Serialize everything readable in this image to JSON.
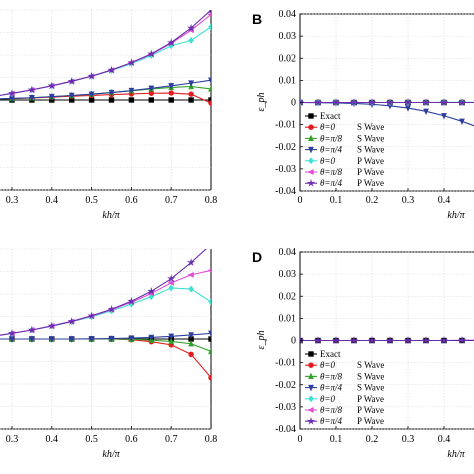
{
  "chart_data": [
    {
      "panel": "",
      "type": "line",
      "xlabel": "kh/π",
      "ylabel": "",
      "xlim": [
        0.25,
        0.8
      ],
      "ylim": [
        -0.04,
        0.04
      ],
      "x_ticks": [
        "0.3",
        "0.4",
        "0.5",
        "0.6",
        "0.7",
        "0.8"
      ],
      "y_ticks": [],
      "series": [
        {
          "color": "#000000",
          "marker": "square",
          "x": [
            0.25,
            0.3,
            0.35,
            0.4,
            0.45,
            0.5,
            0.55,
            0.6,
            0.65,
            0.7,
            0.75,
            0.8
          ],
          "y": [
            0,
            0,
            0,
            0,
            0,
            0,
            0,
            0,
            0,
            0,
            0,
            0
          ]
        },
        {
          "color": "#e41a1c",
          "marker": "circle",
          "x": [
            0.25,
            0.3,
            0.35,
            0.4,
            0.45,
            0.5,
            0.55,
            0.6,
            0.65,
            0.7,
            0.75,
            0.8
          ],
          "y": [
            0.0003,
            0.0006,
            0.0009,
            0.0013,
            0.0017,
            0.002,
            0.0024,
            0.0027,
            0.003,
            0.0031,
            0.0026,
            -0.0014
          ]
        },
        {
          "color": "#33a02c",
          "marker": "triangle-up",
          "x": [
            0.25,
            0.3,
            0.35,
            0.4,
            0.45,
            0.5,
            0.55,
            0.6,
            0.65,
            0.7,
            0.75,
            0.8
          ],
          "y": [
            0.0003,
            0.0007,
            0.001,
            0.0015,
            0.002,
            0.0026,
            0.0033,
            0.0041,
            0.0049,
            0.0056,
            0.006,
            0.0049
          ]
        },
        {
          "color": "#2c3e9e",
          "marker": "triangle-down",
          "x": [
            0.25,
            0.3,
            0.35,
            0.4,
            0.45,
            0.5,
            0.55,
            0.6,
            0.65,
            0.7,
            0.75,
            0.8
          ],
          "y": [
            0.0003,
            0.0007,
            0.001,
            0.0015,
            0.002,
            0.0026,
            0.0033,
            0.0042,
            0.0052,
            0.0063,
            0.0075,
            0.0088
          ]
        },
        {
          "color": "#40e0d0",
          "marker": "diamond",
          "x": [
            0.25,
            0.3,
            0.35,
            0.4,
            0.45,
            0.5,
            0.55,
            0.6,
            0.65,
            0.7,
            0.75,
            0.8
          ],
          "y": [
            0.0015,
            0.0029,
            0.0045,
            0.0063,
            0.0083,
            0.0105,
            0.0131,
            0.0162,
            0.0198,
            0.0241,
            0.0265,
            0.0325
          ]
        },
        {
          "color": "#e24fd8",
          "marker": "triangle-left",
          "x": [
            0.25,
            0.3,
            0.35,
            0.4,
            0.45,
            0.5,
            0.55,
            0.6,
            0.65,
            0.7,
            0.75,
            0.8
          ],
          "y": [
            0.0015,
            0.0029,
            0.0045,
            0.0063,
            0.0083,
            0.0106,
            0.0133,
            0.0166,
            0.0203,
            0.0252,
            0.031,
            0.038
          ]
        },
        {
          "color": "#6a2db0",
          "marker": "star",
          "x": [
            0.25,
            0.3,
            0.35,
            0.4,
            0.45,
            0.5,
            0.55,
            0.6,
            0.65,
            0.7,
            0.75,
            0.8
          ],
          "y": [
            0.0015,
            0.0029,
            0.0045,
            0.0063,
            0.0083,
            0.0106,
            0.0133,
            0.0166,
            0.0205,
            0.0255,
            0.032,
            0.04
          ]
        }
      ]
    },
    {
      "panel": "B",
      "type": "line",
      "xlabel": "kh/π",
      "ylabel": "ε_ph",
      "xlim": [
        0,
        0.5
      ],
      "ylim": [
        -0.04,
        0.04
      ],
      "x_ticks": [
        "0",
        "0.1",
        "0.2",
        "0.3",
        "0.4"
      ],
      "y_ticks": [
        "0.04",
        "0.03",
        "0.02",
        "0.01",
        "0",
        "-0.01",
        "-0.02",
        "-0.03",
        "-0.04"
      ],
      "legend": {
        "position": "lower-left",
        "entries": [
          {
            "label": "Exact",
            "prefix": "",
            "wave": ""
          },
          {
            "label": "",
            "prefix": "θ=0",
            "wave": "S Wave"
          },
          {
            "label": "",
            "prefix": "θ=π/8",
            "wave": "S Wave"
          },
          {
            "label": "",
            "prefix": "θ=π/4",
            "wave": "S Wave"
          },
          {
            "label": "",
            "prefix": "θ=0",
            "wave": "P Wave"
          },
          {
            "label": "",
            "prefix": "θ=π/8",
            "wave": "P Wave"
          },
          {
            "label": "",
            "prefix": "θ=π/4",
            "wave": "P Wave"
          }
        ]
      },
      "series": [
        {
          "color": "#000000",
          "marker": "square",
          "x": [
            0,
            0.05,
            0.1,
            0.15,
            0.2,
            0.25,
            0.3,
            0.35,
            0.4,
            0.45,
            0.5
          ],
          "y": [
            0,
            0,
            0,
            0,
            0,
            0,
            0,
            0,
            0,
            0,
            0
          ]
        },
        {
          "color": "#2c3e9e",
          "marker": "triangle-down",
          "x": [
            0,
            0.05,
            0.1,
            0.15,
            0.2,
            0.25,
            0.3,
            0.35,
            0.4,
            0.45,
            0.5
          ],
          "y": [
            0,
            -0.0001,
            -0.0002,
            -0.0004,
            -0.0008,
            -0.0015,
            -0.0025,
            -0.004,
            -0.006,
            -0.0085,
            -0.0115
          ]
        },
        {
          "color": "#40e0d0",
          "marker": "diamond",
          "x": [
            0,
            0.05,
            0.1,
            0.15,
            0.2,
            0.25,
            0.3,
            0.35,
            0.4,
            0.45,
            0.5
          ],
          "y": [
            0,
            0,
            0,
            0,
            0,
            0,
            0,
            0,
            0.0001,
            0.0001,
            0.0001
          ]
        },
        {
          "color": "#6a2db0",
          "marker": "star",
          "x": [
            0,
            0.05,
            0.1,
            0.15,
            0.2,
            0.25,
            0.3,
            0.35,
            0.4,
            0.45,
            0.5
          ],
          "y": [
            0,
            0,
            0,
            0,
            0,
            0,
            0,
            0,
            0,
            0,
            0
          ]
        }
      ]
    },
    {
      "panel": "",
      "type": "line",
      "xlabel": "kh/π",
      "ylabel": "",
      "xlim": [
        0.25,
        0.8
      ],
      "ylim": [
        -0.04,
        0.04
      ],
      "x_ticks": [
        "0.3",
        "0.4",
        "0.5",
        "0.6",
        "0.7",
        "0.8"
      ],
      "y_ticks": [],
      "series": [
        {
          "color": "#000000",
          "marker": "square",
          "x": [
            0.25,
            0.3,
            0.35,
            0.4,
            0.45,
            0.5,
            0.55,
            0.6,
            0.65,
            0.7,
            0.75,
            0.8
          ],
          "y": [
            0,
            0,
            0,
            0,
            0,
            0,
            0,
            0,
            0,
            0,
            0,
            0
          ]
        },
        {
          "color": "#e41a1c",
          "marker": "circle",
          "x": [
            0.25,
            0.3,
            0.35,
            0.4,
            0.45,
            0.5,
            0.55,
            0.6,
            0.65,
            0.7,
            0.75,
            0.8
          ],
          "y": [
            0,
            0,
            0,
            0,
            0,
            0,
            0,
            -0.0003,
            -0.0012,
            -0.0026,
            -0.0068,
            -0.0172
          ]
        },
        {
          "color": "#33a02c",
          "marker": "triangle-up",
          "x": [
            0.25,
            0.3,
            0.35,
            0.4,
            0.45,
            0.5,
            0.55,
            0.6,
            0.65,
            0.7,
            0.75,
            0.8
          ],
          "y": [
            0,
            0,
            0,
            0,
            0,
            0,
            0,
            -0.0001,
            -0.0005,
            -0.0011,
            -0.0021,
            -0.0055
          ]
        },
        {
          "color": "#2c3e9e",
          "marker": "triangle-down",
          "x": [
            0.25,
            0.3,
            0.35,
            0.4,
            0.45,
            0.5,
            0.55,
            0.6,
            0.65,
            0.7,
            0.75,
            0.8
          ],
          "y": [
            0,
            0,
            0,
            0,
            0,
            0.0001,
            0.0002,
            0.0004,
            0.0007,
            0.0012,
            0.0018,
            0.0025
          ]
        },
        {
          "color": "#40e0d0",
          "marker": "diamond",
          "x": [
            0.25,
            0.3,
            0.35,
            0.4,
            0.45,
            0.5,
            0.55,
            0.6,
            0.65,
            0.7,
            0.75,
            0.8
          ],
          "y": [
            0.0012,
            0.0025,
            0.004,
            0.0057,
            0.0077,
            0.0099,
            0.0125,
            0.0155,
            0.0188,
            0.0227,
            0.0222,
            0.0165
          ]
        },
        {
          "color": "#e24fd8",
          "marker": "triangle-left",
          "x": [
            0.25,
            0.3,
            0.35,
            0.4,
            0.45,
            0.5,
            0.55,
            0.6,
            0.65,
            0.7,
            0.75,
            0.8
          ],
          "y": [
            0.0012,
            0.0025,
            0.004,
            0.0058,
            0.0078,
            0.0102,
            0.013,
            0.0163,
            0.0202,
            0.025,
            0.0285,
            0.0305
          ]
        },
        {
          "color": "#6a2db0",
          "marker": "star",
          "x": [
            0.25,
            0.3,
            0.35,
            0.4,
            0.45,
            0.5,
            0.55,
            0.6,
            0.65,
            0.7,
            0.75,
            0.8
          ],
          "y": [
            0.0012,
            0.0025,
            0.004,
            0.0058,
            0.0078,
            0.0103,
            0.0132,
            0.0168,
            0.0212,
            0.0268,
            0.034,
            0.042
          ]
        }
      ]
    },
    {
      "panel": "D",
      "type": "line",
      "xlabel": "kh/π",
      "ylabel": "ε_ph",
      "xlim": [
        0,
        0.5
      ],
      "ylim": [
        -0.04,
        0.04
      ],
      "x_ticks": [
        "0",
        "0.1",
        "0.2",
        "0.3",
        "0.4"
      ],
      "y_ticks": [
        "0.04",
        "0.03",
        "0.02",
        "0.01",
        "0",
        "-0.01",
        "-0.02",
        "-0.03",
        "-0.04"
      ],
      "legend": {
        "position": "lower-left",
        "entries": [
          {
            "label": "Exact",
            "prefix": "",
            "wave": ""
          },
          {
            "label": "",
            "prefix": "θ=0",
            "wave": "S Wave"
          },
          {
            "label": "",
            "prefix": "θ=π/8",
            "wave": "S Wave"
          },
          {
            "label": "",
            "prefix": "θ=π/4",
            "wave": "S Wave"
          },
          {
            "label": "",
            "prefix": "θ=0",
            "wave": "P Wave"
          },
          {
            "label": "",
            "prefix": "θ=π/8",
            "wave": "P Wave"
          },
          {
            "label": "",
            "prefix": "θ=π/4",
            "wave": "P Wave"
          }
        ]
      },
      "series": [
        {
          "color": "#000000",
          "marker": "square",
          "x": [
            0,
            0.05,
            0.1,
            0.15,
            0.2,
            0.25,
            0.3,
            0.35,
            0.4,
            0.45,
            0.5
          ],
          "y": [
            0,
            0,
            0,
            0,
            0,
            0,
            0,
            0,
            0,
            0,
            0
          ]
        },
        {
          "color": "#6a2db0",
          "marker": "star",
          "x": [
            0,
            0.05,
            0.1,
            0.15,
            0.2,
            0.25,
            0.3,
            0.35,
            0.4,
            0.45,
            0.5
          ],
          "y": [
            0,
            0,
            0,
            0,
            0,
            0,
            0,
            0,
            0,
            0.0001,
            0.0001
          ]
        }
      ]
    }
  ]
}
